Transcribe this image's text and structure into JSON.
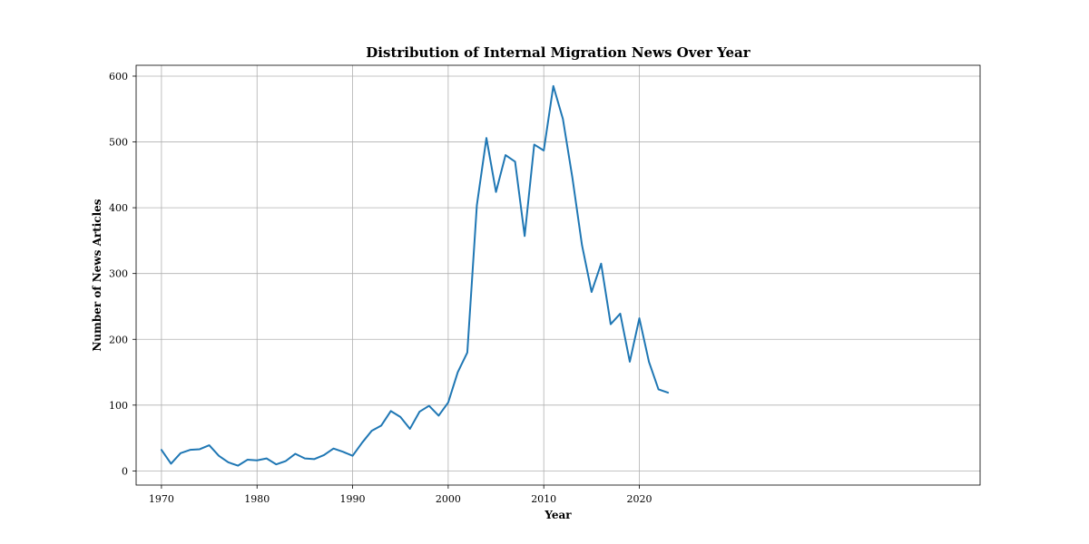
{
  "chart_data": {
    "type": "line",
    "title": "Distribution of Internal Migration News Over Year",
    "xlabel": "Year",
    "ylabel": "Number of News Articles",
    "xlim": [
      1967.35,
      2055.65
    ],
    "ylim": [
      -21.5,
      616.5
    ],
    "grid": true,
    "xticks": [
      1970,
      1980,
      1990,
      2000,
      2010,
      2020
    ],
    "yticks": [
      0,
      100,
      200,
      300,
      400,
      500,
      600
    ],
    "color": "#1f77b4",
    "series": [
      {
        "x": [
          1970,
          1971,
          1972,
          1973,
          1974,
          1975,
          1976,
          1977,
          1978,
          1979,
          1980,
          1981,
          1982,
          1983,
          1984,
          1985,
          1986,
          1987,
          1988,
          1989,
          1990,
          1991,
          1992,
          1993,
          1994,
          1995,
          1996,
          1997,
          1998,
          1999,
          2000,
          2001,
          2002,
          2003,
          2004,
          2005,
          2006,
          2007,
          2008,
          2009,
          2010,
          2011,
          2012,
          2013,
          2014,
          2015,
          2016,
          2017,
          2018,
          2019,
          2020,
          2021,
          2022,
          2023
        ],
        "values": [
          32,
          11,
          27,
          32,
          33,
          39,
          23,
          13,
          8,
          17,
          16,
          19,
          10,
          15,
          26,
          19,
          18,
          24,
          34,
          29,
          23,
          43,
          61,
          69,
          91,
          82,
          64,
          90,
          99,
          84,
          104,
          150,
          180,
          404,
          506,
          424,
          480,
          470,
          357,
          496,
          487,
          585,
          535,
          445,
          343,
          272,
          315,
          223,
          239,
          166,
          232,
          166,
          124,
          119
        ]
      }
    ]
  }
}
